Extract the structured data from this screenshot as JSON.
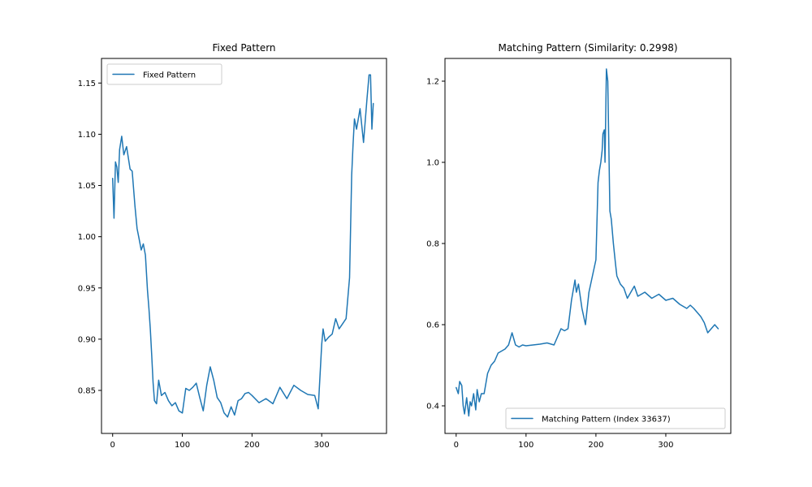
{
  "chart_data": [
    {
      "type": "line",
      "title": "Fixed Pattern",
      "legend_position": "upper-left",
      "xlim": [
        -16,
        393
      ],
      "ylim": [
        0.808,
        1.174
      ],
      "xticks": [
        0,
        100,
        200,
        300
      ],
      "yticks": [
        0.85,
        0.9,
        0.95,
        1.0,
        1.05,
        1.1,
        1.15
      ],
      "ytick_labels": [
        "0.85",
        "0.90",
        "0.95",
        "1.00",
        "1.05",
        "1.10",
        "1.15"
      ],
      "color": "#1f77b4",
      "series": [
        {
          "name": "Fixed Pattern",
          "x": [
            0,
            2,
            4,
            6,
            8,
            10,
            13,
            16,
            20,
            25,
            28,
            32,
            35,
            38,
            41,
            44,
            47,
            50,
            52,
            54,
            56,
            58,
            60,
            63,
            66,
            70,
            75,
            80,
            85,
            90,
            95,
            100,
            105,
            110,
            115,
            120,
            125,
            130,
            135,
            140,
            145,
            150,
            155,
            160,
            165,
            170,
            175,
            180,
            185,
            190,
            195,
            200,
            210,
            220,
            230,
            240,
            250,
            260,
            270,
            280,
            290,
            295,
            300,
            302,
            305,
            310,
            315,
            320,
            325,
            330,
            335,
            340,
            343,
            345,
            347,
            350,
            355,
            360,
            365,
            368,
            370,
            372,
            374
          ],
          "y": [
            1.057,
            1.018,
            1.073,
            1.068,
            1.053,
            1.085,
            1.098,
            1.08,
            1.088,
            1.066,
            1.064,
            1.03,
            1.008,
            0.998,
            0.987,
            0.993,
            0.982,
            0.948,
            0.93,
            0.91,
            0.885,
            0.858,
            0.84,
            0.837,
            0.86,
            0.845,
            0.848,
            0.84,
            0.835,
            0.838,
            0.83,
            0.828,
            0.852,
            0.85,
            0.853,
            0.857,
            0.843,
            0.83,
            0.855,
            0.873,
            0.86,
            0.843,
            0.838,
            0.828,
            0.824,
            0.834,
            0.826,
            0.84,
            0.842,
            0.847,
            0.848,
            0.845,
            0.838,
            0.842,
            0.837,
            0.853,
            0.842,
            0.855,
            0.85,
            0.846,
            0.845,
            0.832,
            0.895,
            0.91,
            0.898,
            0.902,
            0.905,
            0.92,
            0.91,
            0.915,
            0.92,
            0.96,
            1.06,
            1.09,
            1.115,
            1.105,
            1.125,
            1.092,
            1.135,
            1.158,
            1.158,
            1.105,
            1.13
          ]
        }
      ]
    },
    {
      "type": "line",
      "title": "Matching Pattern (Similarity: 0.2998)",
      "legend_position": "lower-right",
      "xlim": [
        -16,
        393
      ],
      "ylim": [
        0.332,
        1.256
      ],
      "xticks": [
        0,
        100,
        200,
        300
      ],
      "yticks": [
        0.4,
        0.6,
        0.8,
        1.0,
        1.2
      ],
      "ytick_labels": [
        "0.4",
        "0.6",
        "0.8",
        "1.0",
        "1.2"
      ],
      "color": "#1f77b4",
      "series": [
        {
          "name": "Matching Pattern (Index 33637)",
          "x": [
            0,
            3,
            5,
            8,
            10,
            12,
            15,
            18,
            20,
            22,
            25,
            28,
            30,
            33,
            36,
            40,
            45,
            50,
            55,
            60,
            65,
            70,
            75,
            80,
            85,
            90,
            95,
            100,
            110,
            120,
            130,
            140,
            145,
            150,
            155,
            160,
            165,
            170,
            172,
            175,
            180,
            185,
            190,
            195,
            200,
            203,
            205,
            207,
            209,
            210,
            212,
            213,
            215,
            217,
            220,
            222,
            225,
            228,
            230,
            235,
            240,
            245,
            250,
            255,
            260,
            270,
            280,
            290,
            300,
            310,
            320,
            325,
            330,
            335,
            340,
            345,
            350,
            355,
            360,
            365,
            370,
            375
          ],
          "y": [
            0.445,
            0.43,
            0.46,
            0.45,
            0.4,
            0.38,
            0.42,
            0.375,
            0.41,
            0.4,
            0.43,
            0.39,
            0.44,
            0.41,
            0.43,
            0.43,
            0.48,
            0.5,
            0.51,
            0.53,
            0.535,
            0.54,
            0.55,
            0.58,
            0.55,
            0.545,
            0.55,
            0.548,
            0.55,
            0.552,
            0.555,
            0.55,
            0.57,
            0.59,
            0.585,
            0.59,
            0.66,
            0.71,
            0.68,
            0.7,
            0.64,
            0.6,
            0.68,
            0.72,
            0.76,
            0.95,
            0.98,
            1.0,
            1.03,
            1.07,
            1.08,
            1.0,
            1.23,
            1.2,
            0.88,
            0.86,
            0.8,
            0.75,
            0.72,
            0.7,
            0.69,
            0.665,
            0.68,
            0.695,
            0.67,
            0.68,
            0.665,
            0.675,
            0.66,
            0.665,
            0.65,
            0.645,
            0.64,
            0.648,
            0.64,
            0.63,
            0.62,
            0.605,
            0.58,
            0.59,
            0.6,
            0.59
          ]
        }
      ]
    }
  ]
}
